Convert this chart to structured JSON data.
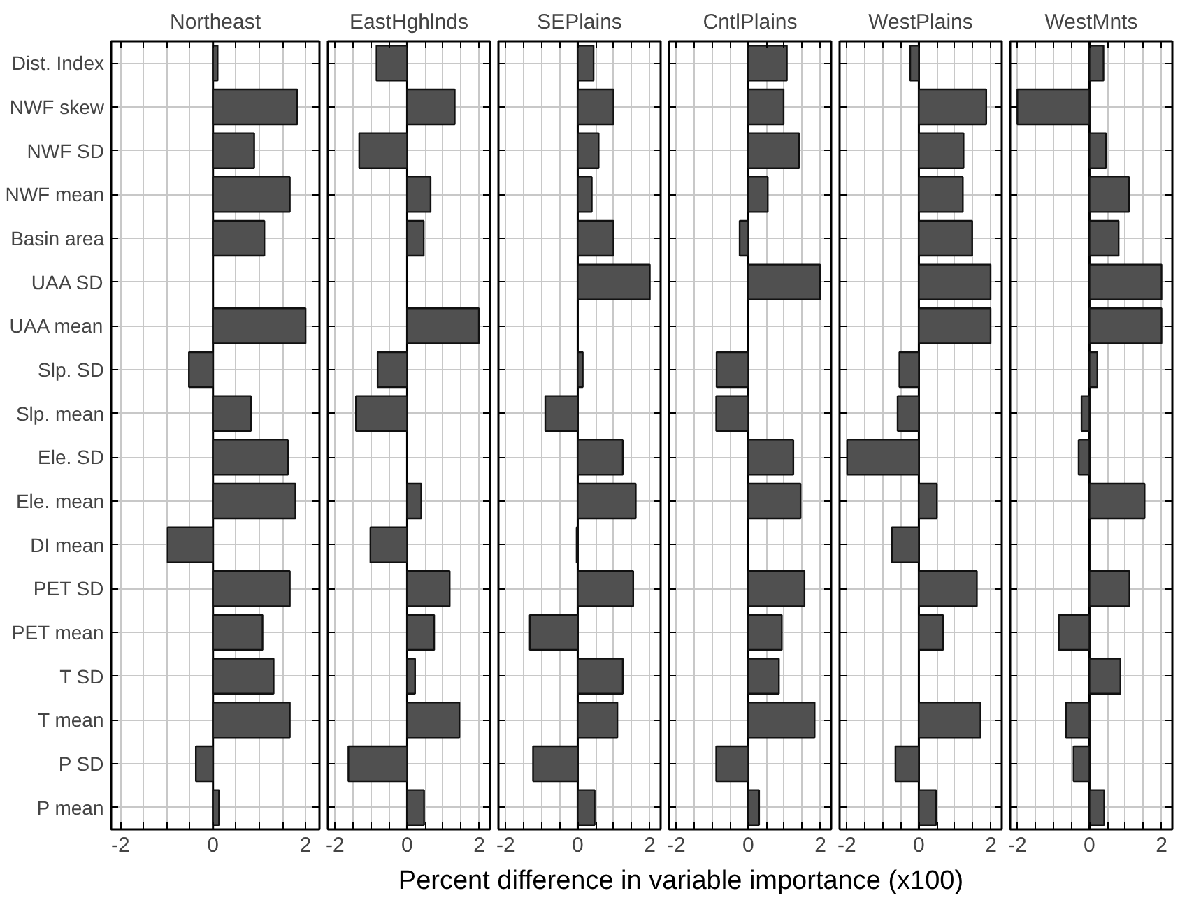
{
  "chart_data": [
    {
      "type": "bar",
      "orientation": "horizontal",
      "title": "Northeast",
      "xlabel": "Percent difference in variable importance (x100)",
      "categories": [
        "Dist. Index",
        "NWF skew",
        "NWF SD",
        "NWF mean",
        "Basin area",
        "UAA SD",
        "UAA mean",
        "Slp. SD",
        "Slp. mean",
        "Ele. SD",
        "Ele. mean",
        "DI mean",
        "PET SD",
        "PET mean",
        "T SD",
        "T mean",
        "P SD",
        "P mean"
      ],
      "values": [
        0.1,
        1.82,
        0.89,
        1.66,
        1.11,
        null,
        2.0,
        -0.52,
        0.82,
        1.62,
        1.78,
        -0.98,
        1.66,
        1.07,
        1.31,
        1.66,
        -0.37,
        0.13
      ],
      "color": "#505050",
      "xlim": [
        -2.2,
        2.3
      ],
      "xticks": [
        -2,
        {
          "value": -1.5,
          "label": null
        },
        {
          "value": -1,
          "label": null
        },
        {
          "value": -0.5,
          "label": null
        },
        0,
        {
          "value": 0.5,
          "label": null
        },
        {
          "value": 1,
          "label": null
        },
        {
          "value": 1.5,
          "label": null
        },
        2
      ],
      "grid": true
    },
    {
      "type": "bar",
      "orientation": "horizontal",
      "title": "EastHghlnds",
      "categories": [
        null,
        null,
        null,
        null,
        null,
        null,
        null,
        null,
        null,
        null,
        null,
        null,
        null,
        null,
        null,
        null,
        null,
        null
      ],
      "values": [
        -0.85,
        1.32,
        -1.33,
        0.65,
        0.46,
        null,
        1.99,
        -0.82,
        -1.42,
        null,
        0.39,
        -1.02,
        1.18,
        0.75,
        0.22,
        1.45,
        -1.63,
        0.47
      ],
      "color": "#505050",
      "xlim": [
        -2.2,
        2.3
      ],
      "xticks": [
        -2,
        {
          "value": -1.5,
          "label": null
        },
        {
          "value": -1,
          "label": null
        },
        {
          "value": -0.5,
          "label": null
        },
        0,
        {
          "value": 0.5,
          "label": null
        },
        {
          "value": 1,
          "label": null
        },
        {
          "value": 1.5,
          "label": null
        },
        2
      ],
      "grid": true,
      "tick_labels": "x"
    },
    {
      "type": "bar",
      "orientation": "horizontal",
      "title": "SEPlains",
      "categories": [
        null,
        null,
        null,
        null,
        null,
        null,
        null,
        null,
        null,
        null,
        null,
        null,
        null,
        null,
        null,
        null,
        null,
        null
      ],
      "values": [
        0.44,
        0.99,
        0.58,
        0.39,
        0.99,
        2.0,
        null,
        0.14,
        -0.9,
        1.25,
        1.61,
        -0.03,
        1.54,
        -1.33,
        1.25,
        1.1,
        -1.24,
        0.47
      ],
      "color": "#505050",
      "xlim": [
        -2.2,
        2.3
      ],
      "xticks": [
        -2,
        {
          "value": -1.5,
          "label": null
        },
        {
          "value": -1,
          "label": null
        },
        {
          "value": -0.5,
          "label": null
        },
        0,
        {
          "value": 0.5,
          "label": null
        },
        {
          "value": 1,
          "label": null
        },
        {
          "value": 1.5,
          "label": null
        },
        2
      ],
      "grid": true,
      "tick_labels": "x"
    },
    {
      "type": "bar",
      "orientation": "horizontal",
      "title": "CntlPlains",
      "categories": [
        null,
        null,
        null,
        null,
        null,
        null,
        null,
        null,
        null,
        null,
        null,
        null,
        null,
        null,
        null,
        null,
        null,
        null
      ],
      "values": [
        1.07,
        0.98,
        1.41,
        0.54,
        -0.24,
        1.99,
        null,
        -0.88,
        -0.89,
        1.25,
        1.45,
        null,
        1.56,
        0.93,
        0.85,
        1.84,
        -0.89,
        0.3
      ],
      "color": "#505050",
      "xlim": [
        -2.2,
        2.3
      ],
      "xticks": [
        -2,
        {
          "value": -1.5,
          "label": null
        },
        {
          "value": -1,
          "label": null
        },
        {
          "value": -0.5,
          "label": null
        },
        0,
        {
          "value": 0.5,
          "label": null
        },
        {
          "value": 1,
          "label": null
        },
        {
          "value": 1.5,
          "label": null
        },
        2
      ],
      "grid": true,
      "tick_labels": "x"
    },
    {
      "type": "bar",
      "orientation": "horizontal",
      "title": "WestPlains",
      "categories": [
        null,
        null,
        null,
        null,
        null,
        null,
        null,
        null,
        null,
        null,
        null,
        null,
        null,
        null,
        null,
        null,
        null,
        null
      ],
      "values": [
        -0.24,
        1.87,
        1.24,
        1.22,
        1.48,
        1.99,
        1.99,
        -0.54,
        -0.59,
        -1.99,
        0.5,
        -0.75,
        1.61,
        0.67,
        null,
        1.71,
        -0.65,
        0.48
      ],
      "color": "#505050",
      "xlim": [
        -2.2,
        2.3
      ],
      "xticks": [
        -2,
        {
          "value": -1.5,
          "label": null
        },
        {
          "value": -1,
          "label": null
        },
        {
          "value": -0.5,
          "label": null
        },
        0,
        {
          "value": 0.5,
          "label": null
        },
        {
          "value": 1,
          "label": null
        },
        {
          "value": 1.5,
          "label": null
        },
        2
      ],
      "grid": true,
      "tick_labels": "x"
    },
    {
      "type": "bar",
      "orientation": "horizontal",
      "title": "WestMnts",
      "categories": [
        null,
        null,
        null,
        null,
        null,
        null,
        null,
        null,
        null,
        null,
        null,
        null,
        null,
        null,
        null,
        null,
        null,
        null
      ],
      "values": [
        0.39,
        -2.0,
        0.46,
        1.1,
        0.81,
        2.0,
        2.0,
        0.22,
        -0.22,
        -0.3,
        1.53,
        null,
        1.11,
        -0.85,
        0.86,
        -0.65,
        -0.44,
        0.41
      ],
      "color": "#505050",
      "xlim": [
        -2.2,
        2.3
      ],
      "xticks": [
        -2,
        {
          "value": -1.5,
          "label": null
        },
        {
          "value": -1,
          "label": null
        },
        {
          "value": -0.5,
          "label": null
        },
        0,
        {
          "value": 0.5,
          "label": null
        },
        {
          "value": 1,
          "label": null
        },
        {
          "value": 1.5,
          "label": null
        },
        2
      ],
      "grid": true,
      "tick_labels": "x"
    }
  ]
}
